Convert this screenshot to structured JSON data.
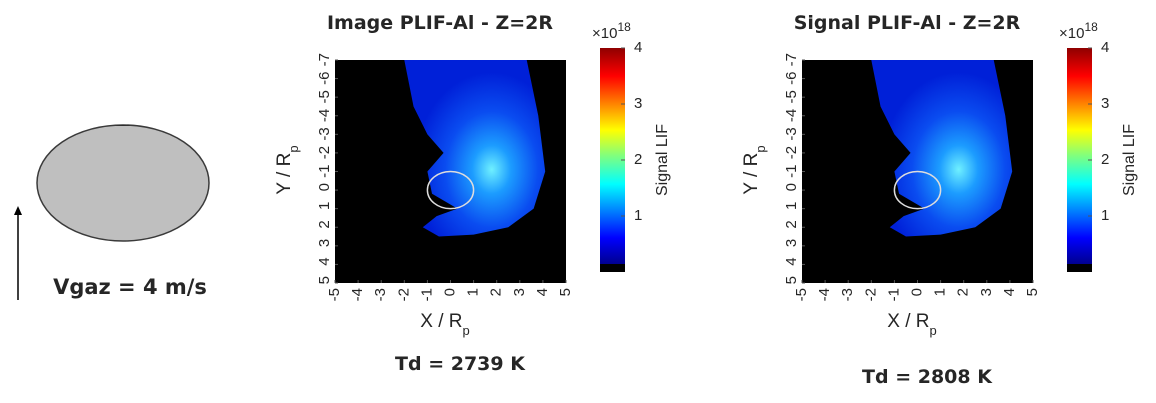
{
  "left": {
    "label": "Vgaz = 4 m/s"
  },
  "chart_data": [
    {
      "type": "heatmap",
      "title": "Image PLIF-Al  - Z=2R",
      "xlabel": "X / R",
      "xlabel_sub": "p",
      "ylabel": "Y / R",
      "ylabel_sub": "p",
      "xlim": [
        -5,
        5
      ],
      "ylim": [
        5,
        -7
      ],
      "xticks": [
        -5,
        -4,
        -3,
        -2,
        -1,
        0,
        1,
        2,
        3,
        4,
        5
      ],
      "yticks": [
        -7,
        -6,
        -5,
        -4,
        -3,
        -2,
        -1,
        0,
        1,
        2,
        3,
        4,
        5
      ],
      "colorbar_label": "Signal LIF",
      "colorbar_base": "×10",
      "colorbar_exponent": "18",
      "clim": [
        0,
        4
      ],
      "cticks": [
        1,
        2,
        3,
        4
      ],
      "caption": "Td = 2739 K"
    },
    {
      "type": "heatmap",
      "title": "Signal PLIF-Al  - Z=2R",
      "xlabel": "X / R",
      "xlabel_sub": "p",
      "ylabel": "Y / R",
      "ylabel_sub": "p",
      "xlim": [
        -5,
        5
      ],
      "ylim": [
        5,
        -7
      ],
      "xticks": [
        -5,
        -4,
        -3,
        -2,
        -1,
        0,
        1,
        2,
        3,
        4,
        5
      ],
      "yticks": [
        -7,
        -6,
        -5,
        -4,
        -3,
        -2,
        -1,
        0,
        1,
        2,
        3,
        4,
        5
      ],
      "colorbar_label": "Signal LIF",
      "colorbar_base": "×10",
      "colorbar_exponent": "18",
      "clim": [
        0,
        4
      ],
      "cticks": [
        1,
        2,
        3,
        4
      ],
      "caption": "Td = 2808 K"
    }
  ]
}
